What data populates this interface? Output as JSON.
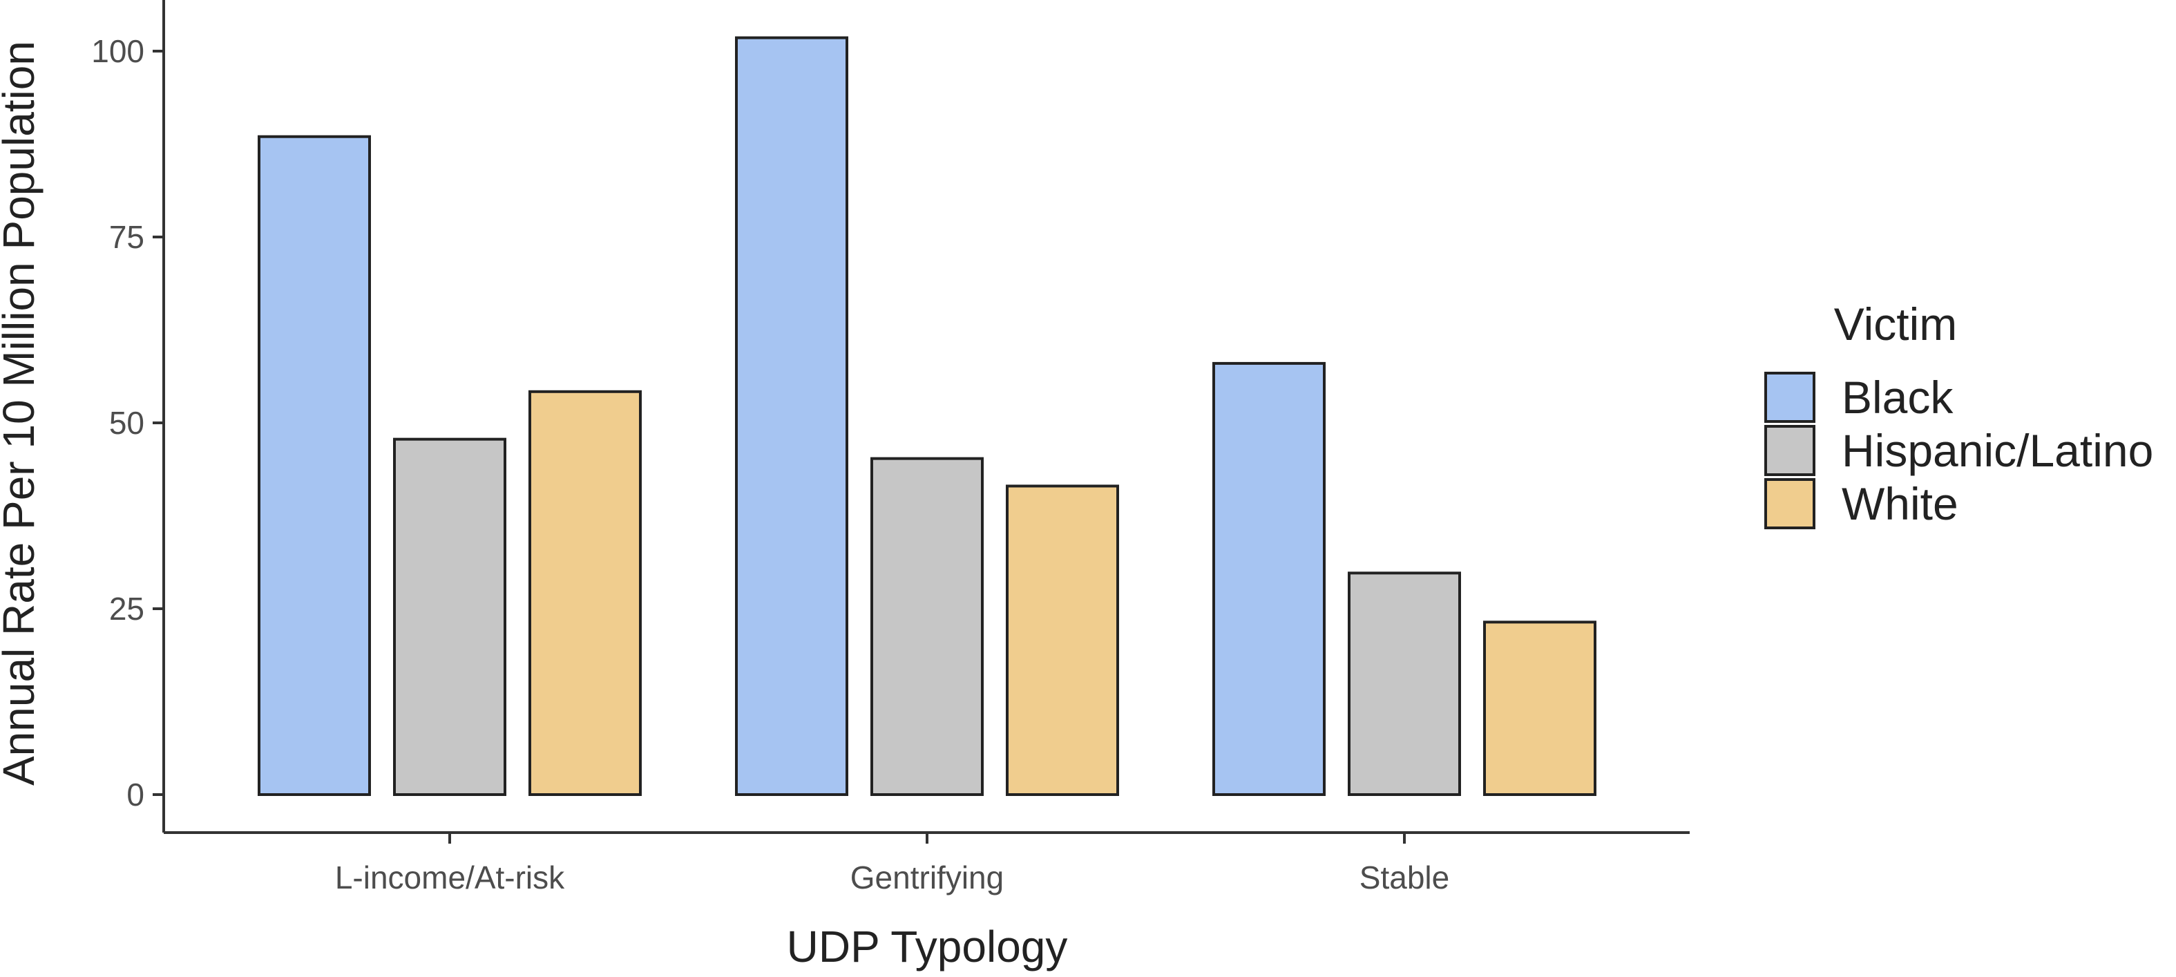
{
  "chart_data": {
    "type": "bar",
    "title": "",
    "xlabel": "UDP Typology",
    "ylabel": "Annual Rate Per 10 Million Population",
    "categories": [
      "L-income/At-risk",
      "Gentrifying",
      "Stable"
    ],
    "series": [
      {
        "name": "Black",
        "color": "#a6c4f2",
        "values": [
          88.5,
          101.8,
          58.0
        ]
      },
      {
        "name": "Hispanic/Latino",
        "color": "#c6c6c6",
        "values": [
          47.8,
          45.2,
          29.8
        ]
      },
      {
        "name": "White",
        "color": "#f0cd8e",
        "values": [
          54.2,
          41.5,
          23.2
        ]
      }
    ],
    "yticks": [
      0,
      25,
      50,
      75,
      100
    ],
    "ylim": [
      0,
      105
    ],
    "grid": false,
    "legend": {
      "title": "Victim",
      "position": "right"
    }
  }
}
